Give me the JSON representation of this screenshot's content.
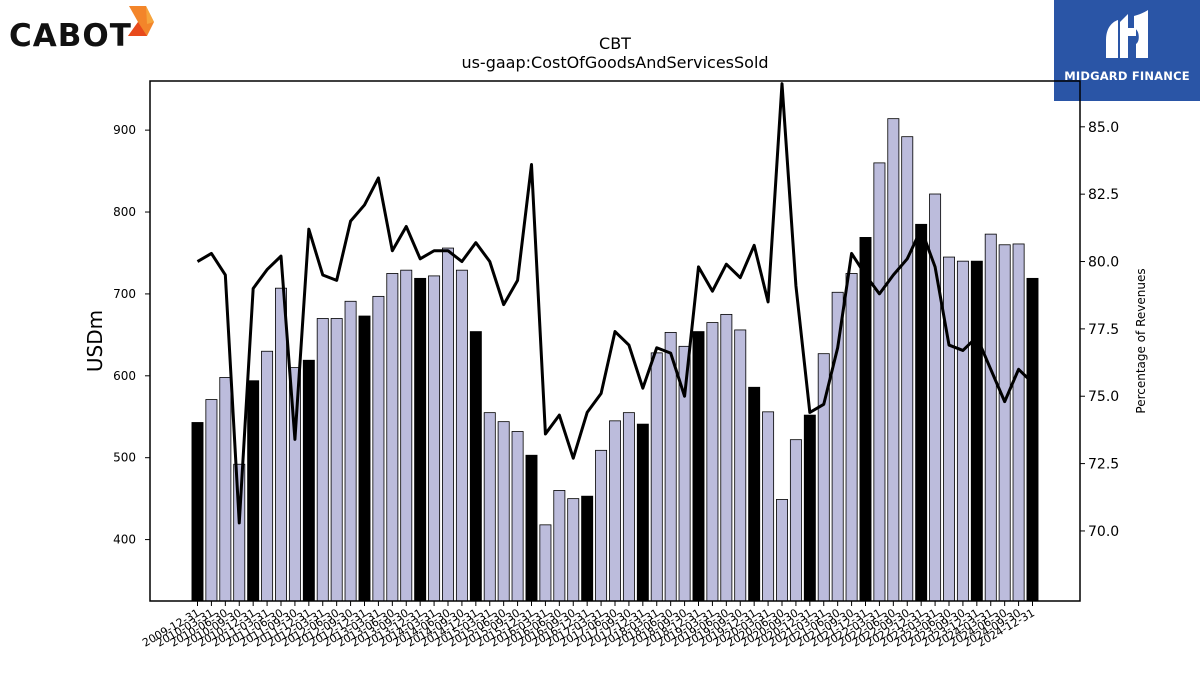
{
  "logos": {
    "left_brand": "CABOT",
    "right_brand": "MIDGARD FINANCE"
  },
  "colors": {
    "bar_fill": "#bcbcdc",
    "bar_highlight_fill": "#000000",
    "line": "#000000"
  },
  "chart_data": {
    "type": "bar",
    "title": "CBT",
    "subtitle": "us-gaap:CostOfGoodsAndServicesSold",
    "ylabel": "USDm",
    "y2label": "Percentage of Revenues",
    "ylim": [
      325,
      960
    ],
    "y2lim": [
      67.4,
      86.7
    ],
    "yticks": [
      400,
      500,
      600,
      700,
      800,
      900
    ],
    "y2ticks": [
      "70.0",
      "72.5",
      "75.0",
      "77.5",
      "80.0",
      "82.5",
      "85.0"
    ],
    "categories": [
      "2009-12-31",
      "2010-03-31",
      "2010-06-30",
      "2010-09-30",
      "2010-12-31",
      "2011-03-31",
      "2011-06-30",
      "2011-09-30",
      "2011-12-31",
      "2012-03-31",
      "2012-06-30",
      "2012-09-30",
      "2012-12-31",
      "2013-03-31",
      "2013-06-30",
      "2013-09-30",
      "2013-12-31",
      "2014-03-31",
      "2014-06-30",
      "2014-09-30",
      "2014-12-31",
      "2015-03-31",
      "2015-06-30",
      "2015-09-30",
      "2015-12-31",
      "2016-03-31",
      "2016-06-30",
      "2016-09-30",
      "2016-12-31",
      "2017-03-31",
      "2017-06-30",
      "2017-09-30",
      "2017-12-31",
      "2018-03-31",
      "2018-06-30",
      "2018-09-30",
      "2018-12-31",
      "2019-03-31",
      "2019-06-30",
      "2019-09-30",
      "2019-12-31",
      "2020-03-31",
      "2020-06-30",
      "2020-09-30",
      "2020-12-31",
      "2021-03-31",
      "2021-06-30",
      "2021-09-30",
      "2021-12-31",
      "2022-03-31",
      "2022-06-30",
      "2022-09-30",
      "2022-12-31",
      "2023-03-31",
      "2023-06-30",
      "2023-09-30",
      "2023-12-31",
      "2024-03-31",
      "2024-06-30",
      "2024-09-30",
      "2024-12-31"
    ],
    "series": [
      {
        "type": "bar",
        "values": [
          543,
          571,
          598,
          492,
          594,
          630,
          707,
          610,
          619,
          670,
          670,
          691,
          673,
          697,
          725,
          729,
          719,
          722,
          756,
          729,
          654,
          555,
          544,
          532,
          503,
          418,
          460,
          450,
          453,
          509,
          545,
          555,
          541,
          628,
          653,
          636,
          654,
          665,
          675,
          656,
          586,
          556,
          449,
          522,
          552,
          627,
          702,
          725,
          769,
          860,
          914,
          892,
          785,
          822,
          745,
          740,
          740,
          773,
          760,
          761,
          719
        ],
        "highlighted": [
          true,
          false,
          false,
          false,
          true,
          false,
          false,
          false,
          true,
          false,
          false,
          false,
          true,
          false,
          false,
          false,
          true,
          false,
          false,
          false,
          true,
          false,
          false,
          false,
          true,
          false,
          false,
          false,
          true,
          false,
          false,
          false,
          true,
          false,
          false,
          false,
          true,
          false,
          false,
          false,
          true,
          false,
          false,
          false,
          true,
          false,
          false,
          false,
          true,
          false,
          false,
          false,
          true,
          false,
          false,
          false,
          true,
          false,
          false,
          false,
          true
        ]
      },
      {
        "type": "line",
        "axis": "right",
        "values": [
          80.0,
          80.3,
          79.5,
          70.3,
          79.0,
          79.7,
          80.2,
          73.4,
          81.2,
          79.5,
          79.3,
          81.5,
          82.1,
          83.1,
          80.4,
          81.3,
          80.1,
          80.4,
          80.4,
          80.0,
          80.7,
          80.0,
          78.4,
          79.3,
          83.6,
          73.6,
          74.3,
          72.7,
          74.4,
          75.1,
          77.4,
          76.9,
          75.3,
          76.8,
          76.6,
          75.0,
          79.8,
          78.9,
          79.9,
          79.4,
          80.6,
          78.5,
          86.6,
          79.1,
          74.4,
          74.7,
          76.8,
          80.3,
          79.5,
          78.8,
          79.5,
          80.1,
          81.2,
          79.8,
          76.9,
          76.7,
          77.2,
          76.0,
          74.8,
          76.0,
          75.5
        ]
      }
    ]
  }
}
